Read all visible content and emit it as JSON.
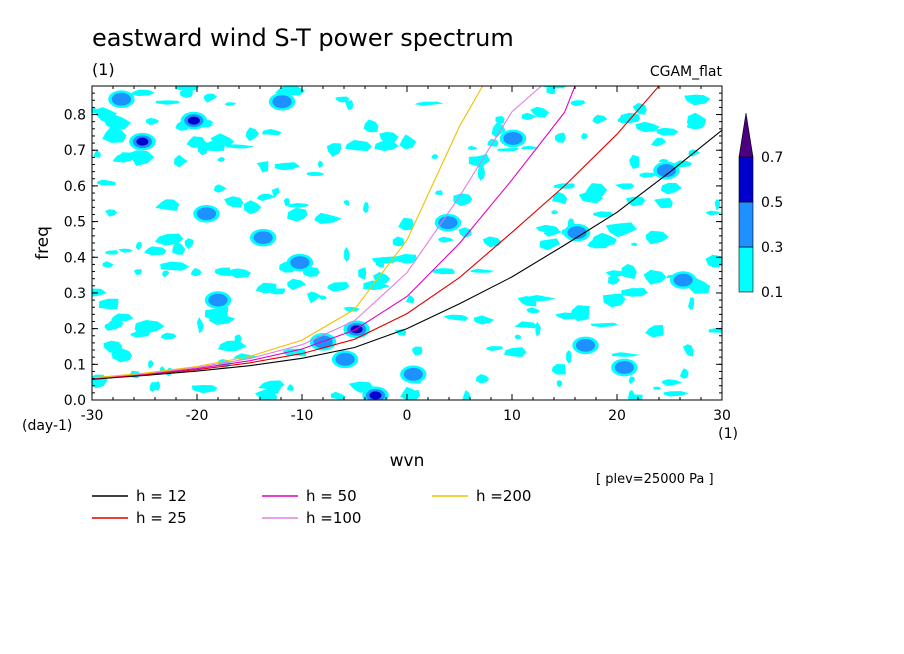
{
  "chart_data": {
    "type": "heatmap",
    "title": "eastward wind S-T power spectrum",
    "subtitle_left": "(1)",
    "subtitle_right": "CGAM_flat",
    "xlabel": "wvn",
    "ylabel": "freq",
    "x_unit": "(1)",
    "y_unit": "(day-1)",
    "xlim": [
      -30,
      30
    ],
    "ylim": [
      0,
      0.88
    ],
    "xticks": [
      "-30",
      "-20",
      "-10",
      "0",
      "10",
      "20",
      "30"
    ],
    "yticks": [
      "0.0",
      "0.1",
      "0.2",
      "0.3",
      "0.4",
      "0.5",
      "0.6",
      "0.7",
      "0.8"
    ],
    "note": "[ plev=25000 Pa ]",
    "colorbar": {
      "levels": [
        "0.1",
        "0.3",
        "0.5",
        "0.7"
      ],
      "colors": [
        "#00ffff",
        "#1e90ff",
        "#0000cd",
        "#4b0082"
      ],
      "extend_top": true
    },
    "blobs": [
      {
        "x": -25.2,
        "y": 0.724,
        "level": 2
      },
      {
        "x": -20.3,
        "y": 0.783,
        "level": 2
      },
      {
        "x": -19.1,
        "y": 0.522,
        "level": 1
      },
      {
        "x": -13.7,
        "y": 0.455,
        "level": 1
      },
      {
        "x": -10.2,
        "y": 0.385,
        "level": 1
      },
      {
        "x": -8.0,
        "y": 0.163,
        "level": 1
      },
      {
        "x": -4.8,
        "y": 0.198,
        "level": 3
      },
      {
        "x": -5.9,
        "y": 0.114,
        "level": 1
      },
      {
        "x": -3.0,
        "y": 0.013,
        "level": 2
      },
      {
        "x": 0.6,
        "y": 0.072,
        "level": 1
      },
      {
        "x": 3.9,
        "y": 0.497,
        "level": 1
      },
      {
        "x": 16.2,
        "y": 0.469,
        "level": 1
      },
      {
        "x": 26.3,
        "y": 0.336,
        "level": 1
      },
      {
        "x": 24.7,
        "y": 0.643,
        "level": 1
      },
      {
        "x": 17.0,
        "y": 0.153,
        "level": 1
      },
      {
        "x": -27.2,
        "y": 0.843,
        "level": 1
      },
      {
        "x": -11.9,
        "y": 0.836,
        "level": 1
      },
      {
        "x": 10.1,
        "y": 0.733,
        "level": 1
      },
      {
        "x": -18.0,
        "y": 0.28,
        "level": 1
      },
      {
        "x": 20.7,
        "y": 0.091,
        "level": 1
      }
    ],
    "noise_seed": 7,
    "series": [
      {
        "name": "h = 12",
        "color": "#000000",
        "x": [
          -30,
          -25,
          -20,
          -15,
          -10,
          -5,
          0,
          5,
          10,
          15,
          20,
          25,
          30
        ],
        "y": [
          0.058,
          0.069,
          0.081,
          0.096,
          0.117,
          0.147,
          0.2,
          0.27,
          0.345,
          0.434,
          0.526,
          0.638,
          0.756
        ]
      },
      {
        "name": "h = 25",
        "color": "#e00000",
        "x": [
          -30,
          -25,
          -20,
          -15,
          -10,
          -5,
          0,
          5,
          10,
          15,
          20,
          24
        ],
        "y": [
          0.06,
          0.071,
          0.085,
          0.104,
          0.13,
          0.17,
          0.242,
          0.343,
          0.47,
          0.6,
          0.745,
          0.88
        ]
      },
      {
        "name": "h = 50",
        "color": "#e000c0",
        "x": [
          -30,
          -25,
          -20,
          -15,
          -10,
          -5,
          0,
          5,
          10,
          15,
          16
        ],
        "y": [
          0.061,
          0.073,
          0.088,
          0.11,
          0.143,
          0.196,
          0.29,
          0.439,
          0.617,
          0.806,
          0.88
        ]
      },
      {
        "name": "h =100",
        "color": "#e080e0",
        "x": [
          -30,
          -25,
          -20,
          -15,
          -10,
          -5,
          0,
          5,
          10,
          12.8
        ],
        "y": [
          0.062,
          0.074,
          0.091,
          0.116,
          0.155,
          0.222,
          0.357,
          0.57,
          0.808,
          0.88
        ]
      },
      {
        "name": "h =200",
        "color": "#f0c000",
        "x": [
          -30,
          -25,
          -20,
          -15,
          -10,
          -5,
          0,
          5,
          7.2
        ],
        "y": [
          0.062,
          0.075,
          0.094,
          0.122,
          0.168,
          0.254,
          0.448,
          0.767,
          0.88
        ]
      }
    ]
  }
}
